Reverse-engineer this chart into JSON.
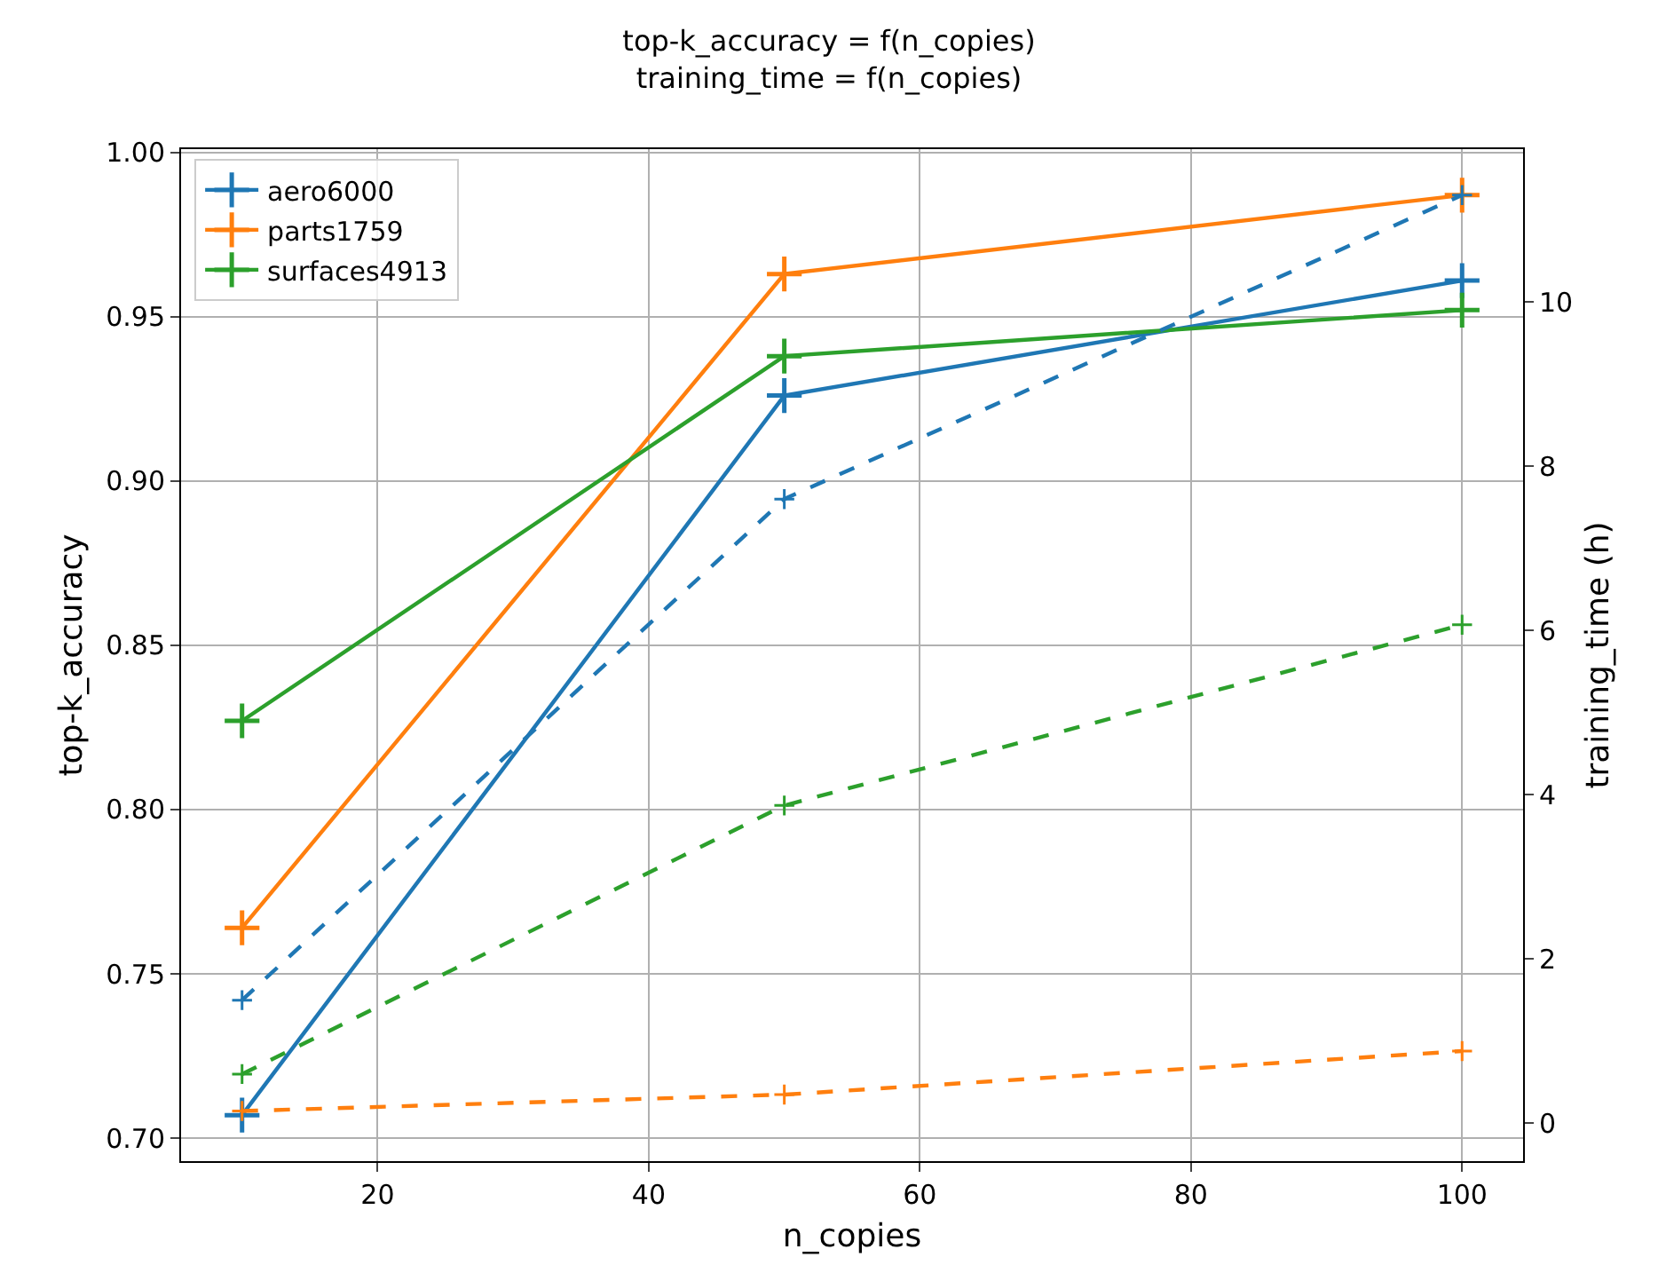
{
  "chart_data": {
    "type": "line",
    "title": "top-k_accuracy = f(n_copies)\ntraining_time = f(n_copies)",
    "xlabel": "n_copies",
    "ylabel": "top-k_accuracy",
    "y2label": "training_time (h)",
    "x": [
      10,
      50,
      100
    ],
    "xlim": [
      5.5,
      104.5
    ],
    "xticks": [
      20,
      40,
      60,
      80,
      100
    ],
    "ylim": [
      0.693,
      1.001
    ],
    "yticks": [
      {
        "value": 0.7,
        "label": "0.70"
      },
      {
        "value": 0.75,
        "label": "0.75"
      },
      {
        "value": 0.8,
        "label": "0.80"
      },
      {
        "value": 0.85,
        "label": "0.85"
      },
      {
        "value": 0.9,
        "label": "0.90"
      },
      {
        "value": 0.95,
        "label": "0.95"
      },
      {
        "value": 1.0,
        "label": "1.00"
      }
    ],
    "y2lim": [
      -0.46,
      11.86
    ],
    "y2ticks": [
      0,
      2,
      4,
      6,
      8,
      10
    ],
    "series": [
      {
        "name": "aero6000",
        "color": "#1f77b4",
        "values": [
          0.707,
          0.926,
          0.961
        ]
      },
      {
        "name": "parts1759",
        "color": "#ff7f0e",
        "values": [
          0.764,
          0.963,
          0.987
        ]
      },
      {
        "name": "surfaces4913",
        "color": "#2ca02c",
        "values": [
          0.827,
          0.938,
          0.952
        ]
      },
      {
        "color": "#1f77b4",
        "values": [
          1.5,
          7.6,
          11.3
        ],
        "axis": "y2",
        "line_style": "dashed"
      },
      {
        "color": "#ff7f0e",
        "values": [
          0.15,
          0.35,
          0.88
        ],
        "axis": "y2",
        "line_style": "dashed"
      },
      {
        "color": "#2ca02c",
        "values": [
          0.6,
          3.87,
          6.07
        ],
        "axis": "y2",
        "line_style": "dashed"
      }
    ],
    "marker": "cross",
    "line_style": "solid",
    "grid": true,
    "legend": "top left"
  }
}
